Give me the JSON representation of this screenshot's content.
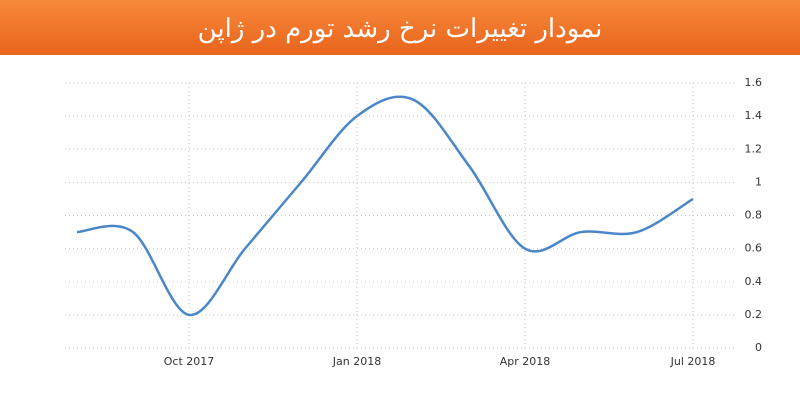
{
  "chart_data": {
    "type": "line",
    "title": "نمودار تغییرات نرخ رشد تورم در ژاپن",
    "categories": [
      null,
      null,
      "Oct 2017",
      null,
      null,
      "Jan 2018",
      null,
      null,
      "Apr 2018",
      null,
      null,
      "Jul 2018"
    ],
    "values": [
      0.7,
      0.7,
      0.2,
      0.6,
      1.0,
      1.4,
      1.5,
      1.1,
      0.6,
      0.7,
      0.7,
      0.9
    ],
    "color": "#4a86c8",
    "ylim": [
      0,
      1.6
    ],
    "yticks": [
      0,
      0.2,
      0.4,
      0.6,
      0.8,
      1,
      1.2,
      1.4,
      1.6
    ],
    "grid": true
  }
}
